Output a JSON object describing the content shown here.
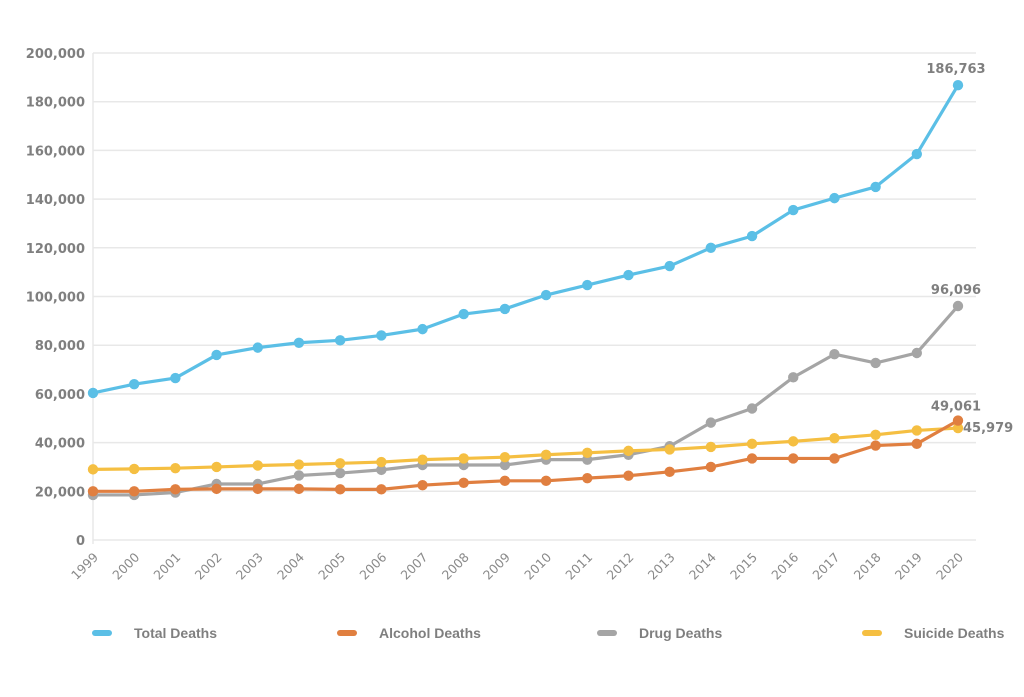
{
  "chart_data": {
    "type": "line",
    "title": "",
    "xlabel": "",
    "ylabel": "",
    "ylim": [
      0,
      200000
    ],
    "yticks": [
      0,
      20000,
      40000,
      60000,
      80000,
      100000,
      120000,
      140000,
      160000,
      180000,
      200000
    ],
    "ytick_labels": [
      "0",
      "20,000",
      "40,000",
      "60,000",
      "80,000",
      "100,000",
      "120,000",
      "140,000",
      "160,000",
      "180,000",
      "200,000"
    ],
    "grid": true,
    "legend_position": "bottom",
    "categories": [
      "1999",
      "2000",
      "2001",
      "2002",
      "2003",
      "2004",
      "2005",
      "2006",
      "2007",
      "2008",
      "2009",
      "2010",
      "2011",
      "2012",
      "2013",
      "2014",
      "2015",
      "2016",
      "2017",
      "2018",
      "2019",
      "2020"
    ],
    "series": [
      {
        "name": "Total Deaths",
        "color": "#5bbfe6",
        "values": [
          60400,
          64000,
          66500,
          76000,
          79000,
          81000,
          82000,
          84000,
          86600,
          92800,
          94900,
          100600,
          104700,
          108800,
          112500,
          120000,
          124800,
          135500,
          140400,
          145000,
          158500,
          186763
        ],
        "end_label": "186,763"
      },
      {
        "name": "Alcohol Deaths",
        "color": "#e07f40",
        "values": [
          20000,
          20000,
          20800,
          21000,
          21000,
          21000,
          20800,
          20800,
          22500,
          23500,
          24300,
          24300,
          25400,
          26400,
          28000,
          30000,
          33500,
          33500,
          33500,
          38800,
          39500,
          49061
        ],
        "end_label": "49,061"
      },
      {
        "name": "Drug Deaths",
        "color": "#a5a5a5",
        "values": [
          18500,
          18500,
          19500,
          23000,
          23000,
          26500,
          27500,
          28800,
          30800,
          30800,
          30800,
          33000,
          33000,
          35000,
          38500,
          48200,
          54000,
          66800,
          76300,
          72700,
          76800,
          96096
        ],
        "end_label": "96,096"
      },
      {
        "name": "Suicide Deaths",
        "color": "#f5bf42",
        "values": [
          29000,
          29200,
          29500,
          30000,
          30600,
          31000,
          31500,
          32000,
          33000,
          33500,
          34000,
          35000,
          35800,
          36600,
          37200,
          38200,
          39500,
          40500,
          41800,
          43200,
          45000,
          45979
        ],
        "end_label": "45,979"
      }
    ]
  }
}
